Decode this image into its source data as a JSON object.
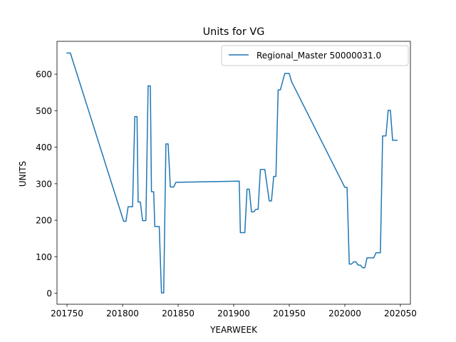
{
  "chart_data": {
    "type": "line",
    "title": "Units for VG",
    "xlabel": "YEARWEEK",
    "ylabel": "UNITS",
    "xlim": [
      201741,
      202059
    ],
    "ylim": [
      -30,
      690
    ],
    "xticks": [
      201750,
      201800,
      201850,
      201900,
      201950,
      202000,
      202050
    ],
    "xtick_labels": [
      "201750",
      "201800",
      "201850",
      "201900",
      "201950",
      "202000",
      "202050"
    ],
    "yticks": [
      0,
      100,
      200,
      300,
      400,
      500,
      600
    ],
    "ytick_labels": [
      "0",
      "100",
      "200",
      "300",
      "400",
      "500",
      "600"
    ],
    "legend_position": "upper-right",
    "grid": false,
    "series": [
      {
        "name": "Regional_Master 50000031.0",
        "color": "#1f77b4",
        "x": [
          201750,
          201753,
          201801,
          201803,
          201805,
          201808,
          201809,
          201811,
          201813,
          201814,
          201816,
          201818,
          201821,
          201823,
          201825,
          201826,
          201828,
          201829,
          201831,
          201833,
          201835,
          201837,
          201839,
          201841,
          201843,
          201844,
          201846,
          201848,
          201850,
          201905,
          201906,
          201908,
          201910,
          201912,
          201914,
          201916,
          201918,
          201920,
          201922,
          201924,
          201926,
          201928,
          201930,
          201932,
          201934,
          201936,
          201938,
          201940,
          201942,
          201944,
          201946,
          201948,
          201950,
          201952,
          202000,
          202002,
          202004,
          202006,
          202008,
          202010,
          202012,
          202014,
          202016,
          202018,
          202020,
          202022,
          202024,
          202026,
          202028,
          202030,
          202032,
          202034,
          202035,
          202037,
          202039,
          202041,
          202043,
          202045,
          202047
        ],
        "y": [
          658,
          658,
          197,
          197,
          237,
          237,
          237,
          484,
          484,
          250,
          250,
          199,
          199,
          568,
          568,
          278,
          278,
          183,
          183,
          183,
          1,
          1,
          409,
          409,
          291,
          291,
          291,
          304,
          304,
          307,
          166,
          166,
          166,
          285,
          285,
          223,
          223,
          230,
          230,
          339,
          339,
          339,
          296,
          253,
          253,
          320,
          320,
          557,
          557,
          580,
          602,
          602,
          602,
          580,
          290,
          290,
          80,
          80,
          86,
          86,
          77,
          77,
          70,
          70,
          97,
          97,
          97,
          97,
          111,
          111,
          111,
          431,
          431,
          431,
          501,
          501,
          419,
          419,
          419
        ]
      }
    ]
  }
}
